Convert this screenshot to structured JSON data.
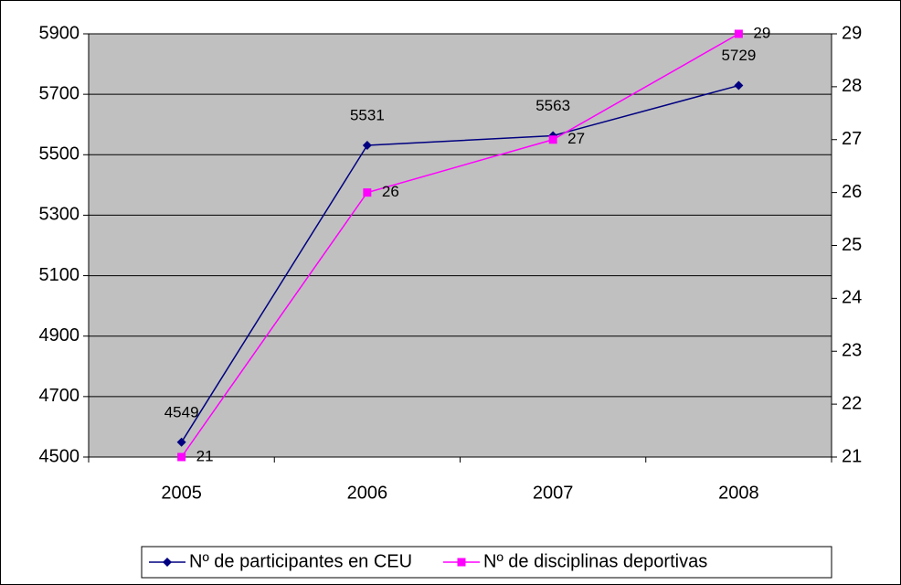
{
  "chart_data": {
    "type": "line",
    "categories": [
      "2005",
      "2006",
      "2007",
      "2008"
    ],
    "series": [
      {
        "name": "Nº de participantes en CEU",
        "color": "#000080",
        "values": [
          4549,
          5531,
          5563,
          5729
        ]
      },
      {
        "name": "Nº de disciplinas deportivas",
        "color": "#ff00ff",
        "values": [
          21,
          26,
          27,
          29
        ],
        "axis": "y2"
      }
    ],
    "ylim": [
      4500,
      5900
    ],
    "yticks": [
      4500,
      4700,
      4900,
      5100,
      5300,
      5500,
      5700,
      5900
    ],
    "y2lim": [
      21,
      29
    ],
    "y2ticks": [
      21,
      22,
      23,
      24,
      25,
      26,
      27,
      28,
      29
    ],
    "grid": true,
    "plot_background": "#c0c0c0",
    "legend": "bottom"
  }
}
